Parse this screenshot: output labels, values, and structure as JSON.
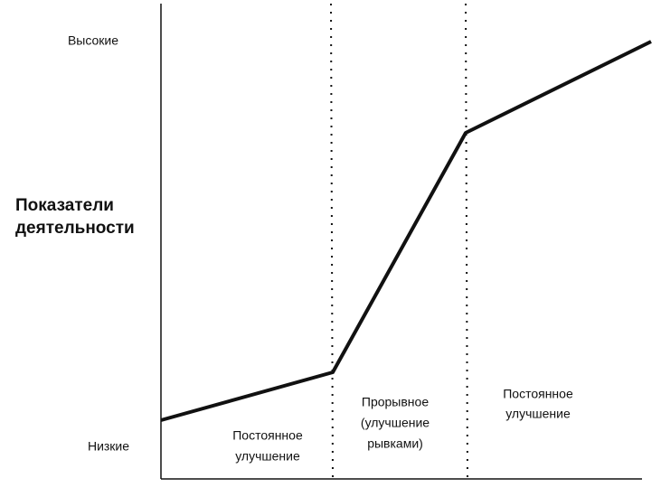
{
  "y_axis": {
    "title": [
      "Показатели",
      "деятельности"
    ],
    "high": "Высокие",
    "low": "Низкие"
  },
  "phases": [
    {
      "label": [
        "Постоянное",
        "улучшение"
      ]
    },
    {
      "label": [
        "Прорывное",
        "(улучшение",
        "рывками)"
      ]
    },
    {
      "label": [
        "Постоянное",
        "улучшение"
      ]
    }
  ]
}
